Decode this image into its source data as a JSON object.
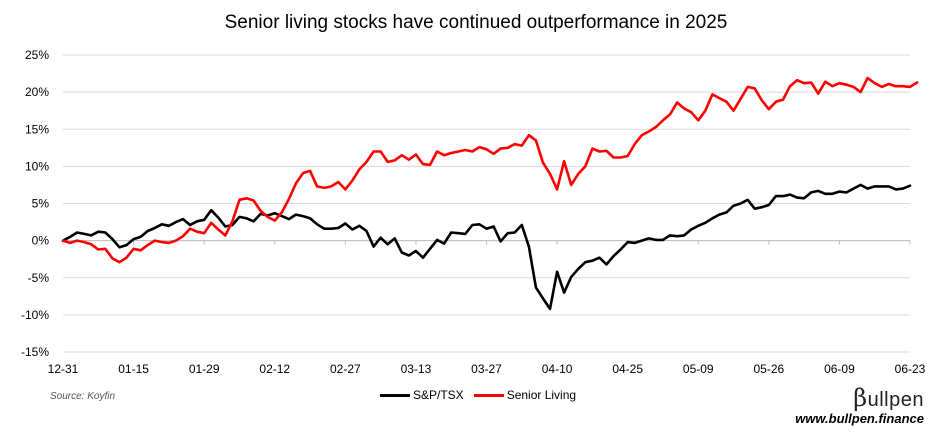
{
  "chart_data": {
    "type": "line",
    "title": "Senior living stocks have continued outperformance in 2025",
    "xlabel": "",
    "ylabel": "",
    "ylim": [
      -15,
      25
    ],
    "y_ticks": [
      "25%",
      "20%",
      "15%",
      "10%",
      "5%",
      "0%",
      "-5%",
      "-10%",
      "-15%"
    ],
    "y_tick_values": [
      25,
      20,
      15,
      10,
      5,
      0,
      -5,
      -10,
      -15
    ],
    "x_tick_labels": [
      "12-31",
      "01-15",
      "01-29",
      "02-12",
      "02-27",
      "03-13",
      "03-27",
      "04-10",
      "04-25",
      "05-09",
      "05-26",
      "06-09",
      "06-23"
    ],
    "x_tick_indices": [
      0,
      10,
      20,
      30,
      40,
      50,
      60,
      70,
      80,
      90,
      100,
      110,
      120
    ],
    "grid": "horizontal",
    "legend_position": "bottom-center",
    "series": [
      {
        "name": "S&P/TSX",
        "color": "#000000",
        "values": [
          0,
          0.5,
          1.1,
          0.9,
          0.7,
          1.2,
          1.1,
          0.2,
          -0.9,
          -0.6,
          0.2,
          0.5,
          1.3,
          1.7,
          2.2,
          2.0,
          2.5,
          2.9,
          2.1,
          2.6,
          2.8,
          4.1,
          3.1,
          1.9,
          2.1,
          3.2,
          3.0,
          2.6,
          3.6,
          3.4,
          3.7,
          3.3,
          2.9,
          3.5,
          3.3,
          3.0,
          2.2,
          1.6,
          1.6,
          1.7,
          2.3,
          1.5,
          2.0,
          1.3,
          -0.8,
          0.4,
          -0.5,
          0.3,
          -1.6,
          -2.0,
          -1.4,
          -2.3,
          -1.1,
          0.1,
          -0.4,
          1.1,
          1.0,
          0.9,
          2.1,
          2.2,
          1.6,
          1.9,
          -0.1,
          1.0,
          1.1,
          2.1,
          -0.8,
          -6.3,
          -7.8,
          -9.2,
          -4.2,
          -7.0,
          -4.9,
          -3.8,
          -2.9,
          -2.7,
          -2.3,
          -3.2,
          -2.1,
          -1.2,
          -0.2,
          -0.3,
          0.0,
          0.3,
          0.1,
          0.1,
          0.7,
          0.6,
          0.7,
          1.5,
          2.0,
          2.4,
          3.0,
          3.5,
          3.8,
          4.7,
          5.0,
          5.5,
          4.3,
          4.5,
          4.8,
          6.0,
          6.0,
          6.2,
          5.8,
          5.7,
          6.5,
          6.7,
          6.3,
          6.3,
          6.6,
          6.5,
          7.0,
          7.5,
          7.0,
          7.3,
          7.3,
          7.3,
          6.9,
          7.0,
          7.4
        ]
      },
      {
        "name": "Senior Living",
        "color": "#ff0000",
        "values": [
          0,
          -0.3,
          0.0,
          -0.2,
          -0.5,
          -1.2,
          -1.1,
          -2.4,
          -2.9,
          -2.3,
          -1.1,
          -1.3,
          -0.6,
          0.0,
          -0.2,
          -0.3,
          0.0,
          0.6,
          1.6,
          1.2,
          1.0,
          2.4,
          1.5,
          0.7,
          2.6,
          5.5,
          5.7,
          5.4,
          4.0,
          3.2,
          2.7,
          3.8,
          5.6,
          7.7,
          9.1,
          9.4,
          7.3,
          7.1,
          7.3,
          7.9,
          6.9,
          8.1,
          9.6,
          10.6,
          12.0,
          12.0,
          10.6,
          10.8,
          11.5,
          10.9,
          11.6,
          10.3,
          10.2,
          12.0,
          11.5,
          11.8,
          12.0,
          12.2,
          12.0,
          12.6,
          12.3,
          11.7,
          12.4,
          12.5,
          13.0,
          12.8,
          14.2,
          13.5,
          10.5,
          9.0,
          6.9,
          10.7,
          7.5,
          9.0,
          10.0,
          12.4,
          12.0,
          12.1,
          11.2,
          11.2,
          11.4,
          13.0,
          14.2,
          14.7,
          15.3,
          16.2,
          17.0,
          18.6,
          17.8,
          17.3,
          16.2,
          17.5,
          19.7,
          19.2,
          18.7,
          17.5,
          19.1,
          20.7,
          20.5,
          18.9,
          17.7,
          18.7,
          19.0,
          20.8,
          21.6,
          21.2,
          21.3,
          19.8,
          21.4,
          20.8,
          21.2,
          21.0,
          20.7,
          20.0,
          21.9,
          21.2,
          20.7,
          21.1,
          20.8,
          20.8,
          20.7,
          21.3
        ]
      }
    ]
  },
  "source_note": "Source: Koyfin",
  "brand": {
    "logo_symbol": "β",
    "logo_text": "ullpen",
    "url": "www.bullpen.finance"
  }
}
